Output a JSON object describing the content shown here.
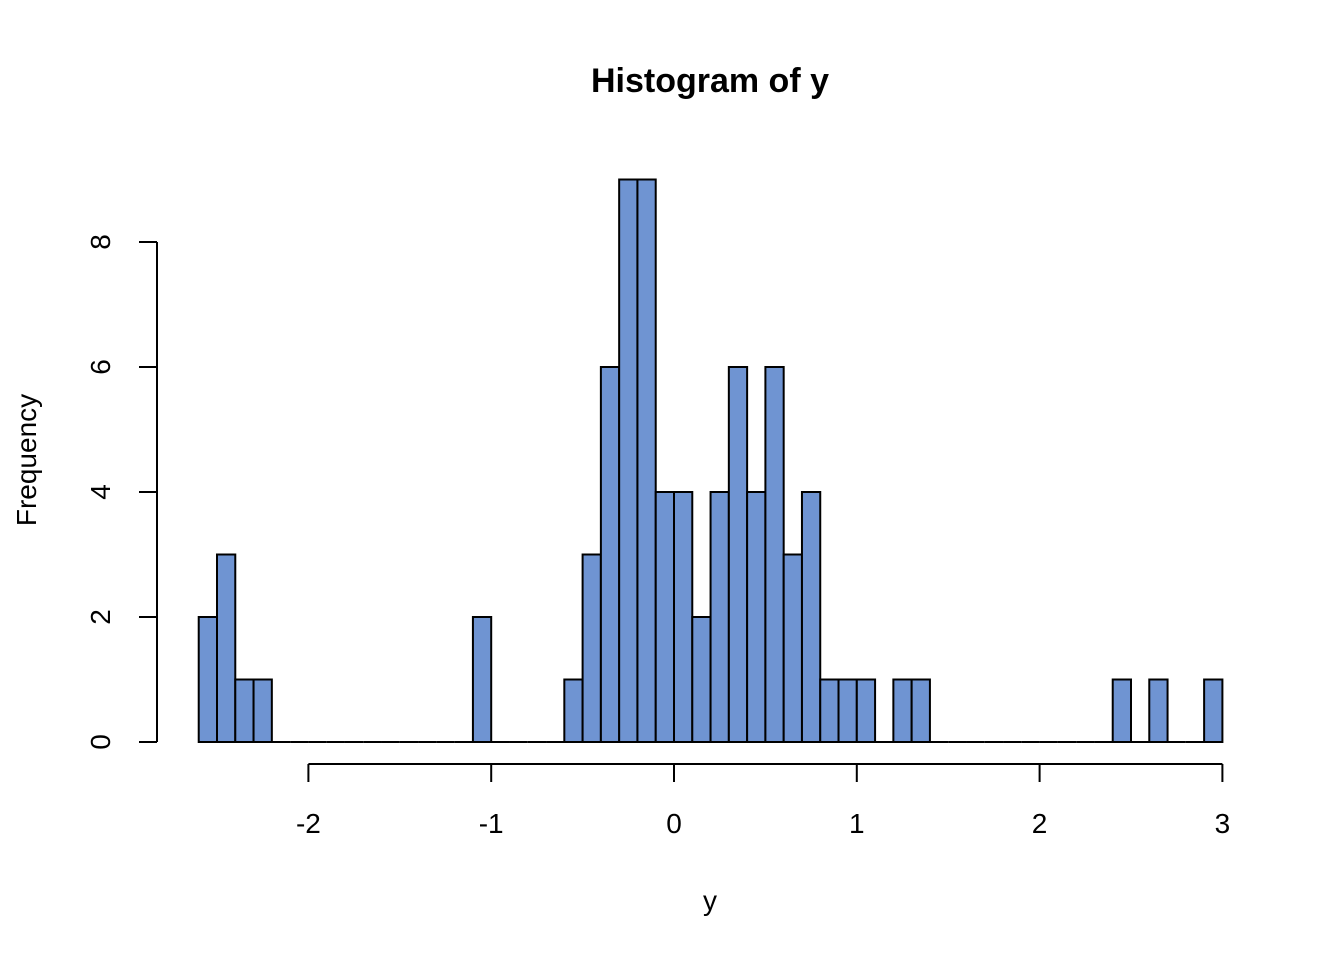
{
  "chart_data": {
    "type": "bar",
    "subtype": "histogram",
    "title": "Histogram of y",
    "xlabel": "y",
    "ylabel": "Frequency",
    "bin_start": -2.6,
    "bin_width": 0.1,
    "counts": [
      2,
      3,
      1,
      1,
      0,
      0,
      0,
      0,
      0,
      0,
      0,
      0,
      0,
      0,
      0,
      2,
      0,
      0,
      0,
      0,
      1,
      3,
      6,
      9,
      9,
      4,
      4,
      2,
      4,
      6,
      4,
      6,
      3,
      4,
      1,
      1,
      1,
      0,
      1,
      1,
      0,
      0,
      0,
      0,
      0,
      0,
      0,
      0,
      0,
      0,
      1,
      0,
      1,
      0,
      0,
      1
    ],
    "xticks": [
      -2,
      -1,
      0,
      1,
      2,
      3
    ],
    "xtick_labels": [
      "-2",
      "-1",
      "0",
      "1",
      "2",
      "3"
    ],
    "yticks": [
      0,
      2,
      4,
      6,
      8
    ],
    "ytick_labels": [
      "0",
      "2",
      "4",
      "6",
      "8"
    ],
    "xlim": [
      -2.6,
      3.0
    ],
    "ylim": [
      0,
      9
    ],
    "bar_color": "#6f94d2",
    "grid": false
  }
}
